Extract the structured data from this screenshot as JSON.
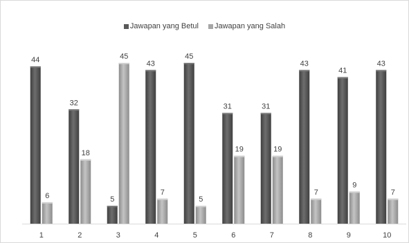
{
  "chart_data": {
    "type": "bar",
    "title": "",
    "xlabel": "",
    "ylabel": "",
    "categories": [
      "1",
      "2",
      "3",
      "4",
      "5",
      "6",
      "7",
      "8",
      "9",
      "10"
    ],
    "series": [
      {
        "name": "Jawapan yang Betul",
        "values": [
          44,
          32,
          5,
          43,
          45,
          31,
          31,
          43,
          41,
          43
        ],
        "color": "#595959"
      },
      {
        "name": "Jawapan yang Salah",
        "values": [
          6,
          18,
          45,
          7,
          5,
          19,
          19,
          7,
          9,
          7
        ],
        "color": "#a6a6a6"
      }
    ],
    "ylim": [
      0,
      45
    ],
    "legend_position": "top-center",
    "grid": false
  }
}
